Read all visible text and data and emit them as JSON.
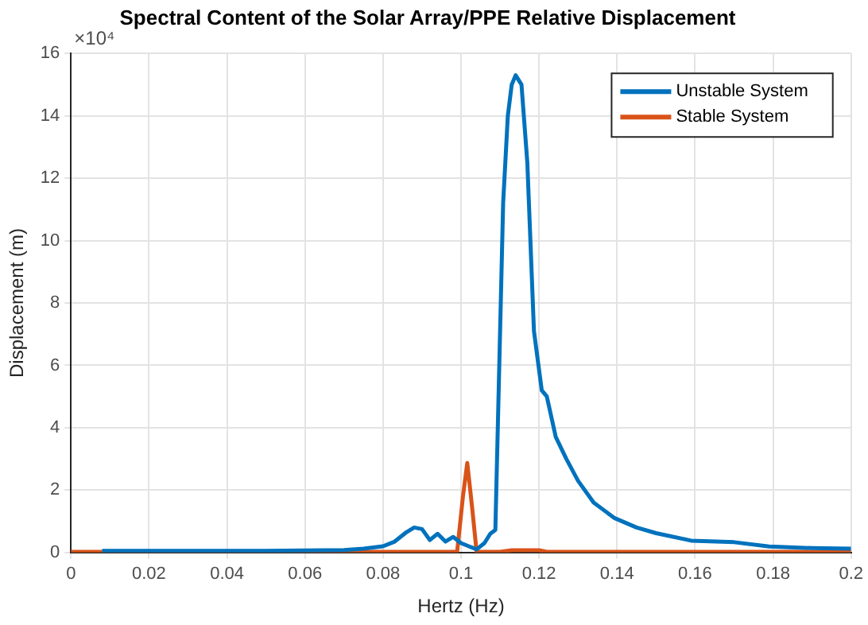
{
  "chart_data": {
    "type": "line",
    "title": "Spectral Content of the Solar Array/PPE Relative Displacement",
    "xlabel": "Hertz (Hz)",
    "ylabel": "Displacement (m)",
    "annotations": [
      "×10⁴"
    ],
    "xlim": [
      0,
      0.2
    ],
    "xticks": [
      0,
      0.02,
      0.04,
      0.06,
      0.08,
      0.1,
      0.12,
      0.14,
      0.16,
      0.18,
      0.2
    ],
    "ylim": [
      0,
      16
    ],
    "yticks": [
      0,
      2,
      4,
      6,
      8,
      10,
      12,
      14,
      16
    ],
    "grid": true,
    "legend": "top right",
    "marker": "none",
    "line_style": "solid",
    "series": [
      {
        "name": "Unstable System",
        "color": "#0072bd",
        "x": [
          0.008,
          0.03,
          0.05,
          0.07,
          0.075,
          0.08,
          0.083,
          0.086,
          0.088,
          0.09,
          0.092,
          0.094,
          0.096,
          0.098,
          0.1,
          0.102,
          0.104,
          0.106,
          0.1075,
          0.1088,
          0.1096,
          0.1108,
          0.112,
          0.113,
          0.114,
          0.1155,
          0.117,
          0.1187,
          0.1207,
          0.122,
          0.1243,
          0.127,
          0.13,
          0.134,
          0.1394,
          0.145,
          0.15,
          0.159,
          0.17,
          0.179,
          0.19,
          0.2
        ],
        "values": [
          0.05,
          0.05,
          0.05,
          0.08,
          0.12,
          0.2,
          0.35,
          0.65,
          0.8,
          0.75,
          0.4,
          0.6,
          0.35,
          0.5,
          0.3,
          0.2,
          0.1,
          0.3,
          0.6,
          0.72,
          4.9,
          11.2,
          14.0,
          15.0,
          15.3,
          15.0,
          12.5,
          7.1,
          5.2,
          5.0,
          3.7,
          3.0,
          2.3,
          1.6,
          1.1,
          0.8,
          0.62,
          0.38,
          0.33,
          0.19,
          0.14,
          0.12
        ]
      },
      {
        "name": "Stable System",
        "color": "#d95319",
        "x": [
          0,
          0.099,
          0.1005,
          0.1016,
          0.1028,
          0.104,
          0.11,
          0.113,
          0.12,
          0.122,
          0.2
        ],
        "values": [
          0.02,
          0.02,
          1.8,
          2.87,
          1.5,
          0.02,
          0.02,
          0.07,
          0.07,
          0.02,
          0.02
        ]
      }
    ]
  }
}
